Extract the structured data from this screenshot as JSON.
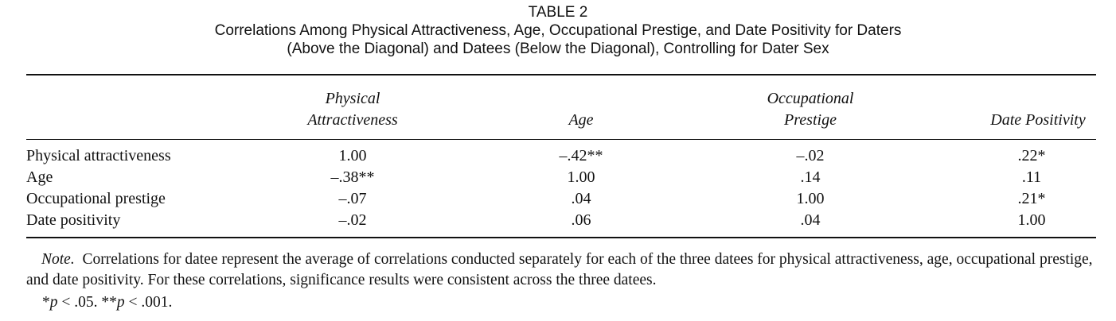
{
  "table": {
    "label": "TABLE 2",
    "caption_line1": "Correlations Among Physical Attractiveness, Age, Occupational Prestige, and Date Positivity for Daters",
    "caption_line2": "(Above the Diagonal) and Datees (Below the Diagonal), Controlling for Dater Sex",
    "columns": [
      {
        "line1": "Physical",
        "line2": "Attractiveness"
      },
      {
        "line1": "",
        "line2": "Age"
      },
      {
        "line1": "Occupational",
        "line2": "Prestige"
      },
      {
        "line1": "",
        "line2": "Date Positivity"
      }
    ],
    "rows": [
      {
        "label": "Physical attractiveness",
        "cells": [
          "1.00",
          "–.42**",
          "–.02",
          ".22*"
        ]
      },
      {
        "label": "Age",
        "cells": [
          "–.38**",
          "1.00",
          ".14",
          ".11"
        ]
      },
      {
        "label": "Occupational prestige",
        "cells": [
          "–.07",
          ".04",
          "1.00",
          ".21*"
        ]
      },
      {
        "label": "Date positivity",
        "cells": [
          "–.02",
          ".06",
          ".04",
          "1.00"
        ]
      }
    ]
  },
  "note": {
    "lead": "Note.",
    "text": "Correlations for datee represent the average of correlations conducted separately for each of the three datees for physical attractiveness, age, occupational prestige, and date positivity. For these correlations, significance results were consistent across the three datees.",
    "sig1_stars": "*",
    "sig1_p": "p",
    "sig1_rest": " < .05. ",
    "sig2_stars": "**",
    "sig2_p": "p",
    "sig2_rest": " < .001."
  }
}
